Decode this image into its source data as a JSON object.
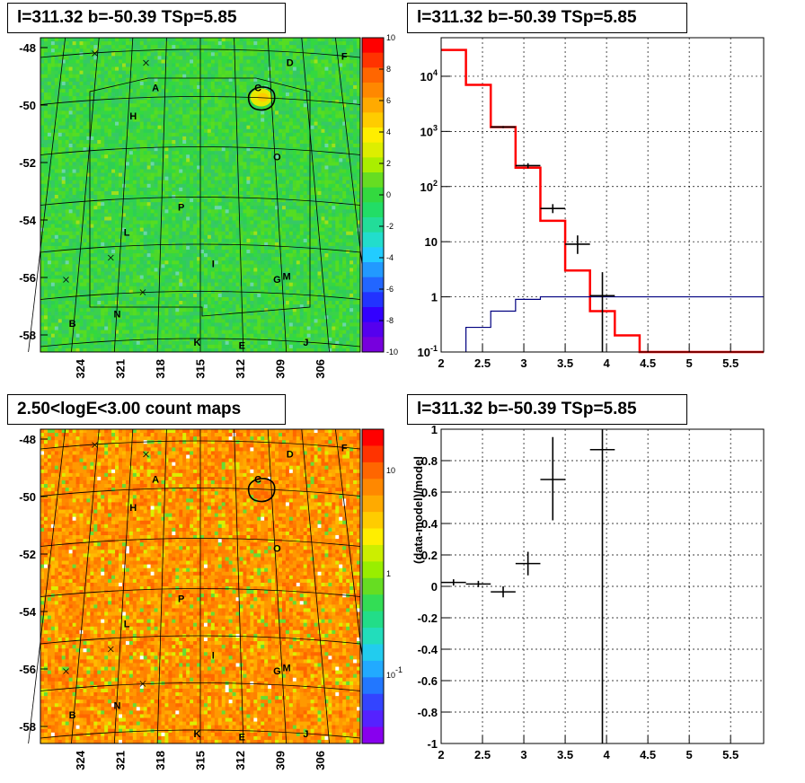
{
  "panels": {
    "map_top_title": "l=311.32 b=-50.39 TSp=5.85",
    "spectrum_title": "l=311.32 b=-50.39 TSp=5.85",
    "map_bottom_title": "2.50<logE<3.00 count maps",
    "residual_title": "l=311.32 b=-50.39 TSp=5.85"
  },
  "chart_data": [
    {
      "type": "heatmap",
      "name": "residual significance map",
      "xlabel": "",
      "ylabel": "",
      "x_ticks": [
        "324",
        "321",
        "318",
        "315",
        "312",
        "309",
        "306"
      ],
      "y_ticks": [
        "-48",
        "-50",
        "-52",
        "-54",
        "-56",
        "-58"
      ],
      "colorbar_ticks": [
        "10",
        "8",
        "6",
        "4",
        "2",
        "0",
        "-2",
        "-4",
        "-6",
        "-8",
        "-10"
      ],
      "colorbar_range": [
        -10,
        10
      ],
      "region_labels": [
        "A",
        "B",
        "C",
        "D",
        "E",
        "F",
        "G",
        "H",
        "I",
        "J",
        "K",
        "L",
        "M",
        "N",
        "O",
        "P"
      ],
      "colors": {
        "background": "#33d93f",
        "hotspot": "#e8e800"
      }
    },
    {
      "type": "line",
      "name": "spectrum",
      "xlabel": "",
      "ylabel": "",
      "xlim": [
        2,
        5.9
      ],
      "ylim": [
        0.1,
        50000
      ],
      "yscale": "log",
      "x_ticks": [
        "2",
        "2.5",
        "3",
        "3.5",
        "4",
        "4.5",
        "5",
        "5.5"
      ],
      "y_ticks": [
        "10^-1",
        "1",
        "10",
        "10^2",
        "10^3",
        "10^4"
      ],
      "series": [
        {
          "color": "#ff0000",
          "edges": [
            2.0,
            2.3,
            2.6,
            2.9,
            3.2,
            3.5,
            3.8,
            4.1,
            4.4,
            5.9
          ],
          "values": [
            30000,
            7000,
            1200,
            220,
            24,
            3,
            0.55,
            0.2,
            0.1
          ]
        },
        {
          "color": "#000080",
          "edges": [
            2.3,
            2.6,
            2.9,
            3.2,
            5.9
          ],
          "values": [
            0.28,
            0.55,
            0.9,
            1.0
          ]
        },
        {
          "color": "#000000",
          "points": [
            {
              "x": 2.75,
              "xerr": 0.15,
              "y": 1200,
              "ylo": 1150,
              "yhi": 1250
            },
            {
              "x": 3.05,
              "xerr": 0.15,
              "y": 240,
              "ylo": 215,
              "yhi": 265
            },
            {
              "x": 3.35,
              "xerr": 0.15,
              "y": 40,
              "ylo": 33,
              "yhi": 48
            },
            {
              "x": 3.65,
              "xerr": 0.15,
              "y": 9,
              "ylo": 6,
              "yhi": 13
            },
            {
              "x": 3.95,
              "xerr": 0.15,
              "y": 1.05,
              "ylo": 0.1,
              "yhi": 2.8
            }
          ]
        }
      ]
    },
    {
      "type": "heatmap",
      "name": "count map",
      "xlabel": "",
      "ylabel": "",
      "x_ticks": [
        "324",
        "321",
        "318",
        "315",
        "312",
        "309",
        "306"
      ],
      "y_ticks": [
        "-48",
        "-50",
        "-52",
        "-54",
        "-56",
        "-58"
      ],
      "colorbar_ticks": [
        "10",
        "1",
        "10^-1"
      ],
      "colorbar_scale": "log",
      "region_labels": [
        "A",
        "B",
        "C",
        "D",
        "E",
        "F",
        "G",
        "H",
        "I",
        "J",
        "K",
        "L",
        "M",
        "N",
        "O",
        "P"
      ],
      "colors": {
        "background": "#ff9900"
      }
    },
    {
      "type": "scatter",
      "name": "residuals",
      "xlabel": "",
      "ylabel": "(data-model)/model",
      "xlim": [
        2,
        5.9
      ],
      "ylim": [
        -1,
        1
      ],
      "x_ticks": [
        "2",
        "2.5",
        "3",
        "3.5",
        "4",
        "4.5",
        "5",
        "5.5"
      ],
      "y_ticks": [
        "1",
        "0.8",
        "0.6",
        "0.4",
        "0.2",
        "0",
        "-0.2",
        "-0.4",
        "-0.6",
        "-0.8",
        "-1"
      ],
      "points": [
        {
          "x": 2.15,
          "xerr": 0.15,
          "y": 0.025,
          "ylo": 0.005,
          "yhi": 0.045
        },
        {
          "x": 2.45,
          "xerr": 0.15,
          "y": 0.015,
          "ylo": -0.005,
          "yhi": 0.035
        },
        {
          "x": 2.75,
          "xerr": 0.15,
          "y": -0.035,
          "ylo": -0.07,
          "yhi": 0.0
        },
        {
          "x": 3.05,
          "xerr": 0.15,
          "y": 0.145,
          "ylo": 0.07,
          "yhi": 0.22
        },
        {
          "x": 3.35,
          "xerr": 0.15,
          "y": 0.68,
          "ylo": 0.42,
          "yhi": 0.95
        },
        {
          "x": 3.95,
          "xerr": 0.15,
          "y": 0.87,
          "ylo": -1.0,
          "yhi": 1.0
        }
      ]
    }
  ]
}
